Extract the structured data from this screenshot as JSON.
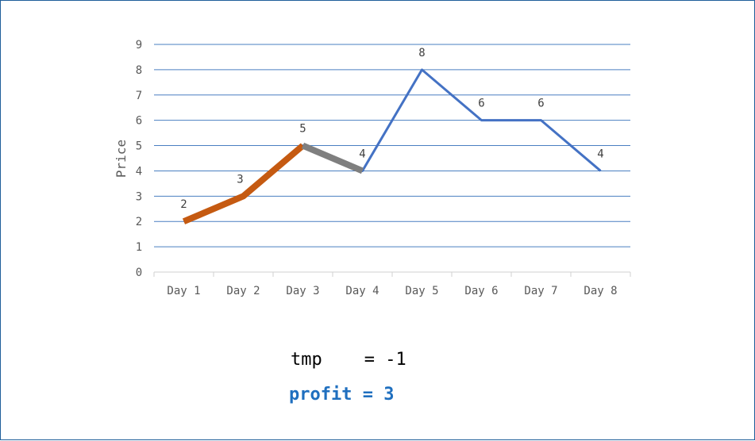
{
  "chart_data": {
    "type": "line",
    "categories": [
      "Day 1",
      "Day 2",
      "Day 3",
      "Day 4",
      "Day 5",
      "Day 6",
      "Day 7",
      "Day 8"
    ],
    "series": [
      {
        "values": [
          2,
          3,
          5,
          4,
          8,
          6,
          6,
          4
        ],
        "color": "#4472c4"
      }
    ],
    "data_labels": [
      "2",
      "3",
      "5",
      "4",
      "8",
      "6",
      "6",
      "4"
    ],
    "highlighted_segments": [
      {
        "from": "Day 1",
        "to": "Day 3",
        "color": "#c55a11"
      },
      {
        "from": "Day 3",
        "to": "Day 4",
        "color": "#7f7f7f"
      }
    ],
    "ylabel": "Price",
    "xlabel": "",
    "ylim": [
      0,
      9
    ],
    "yticks": [
      "0",
      "1",
      "2",
      "3",
      "4",
      "5",
      "6",
      "7",
      "8",
      "9"
    ],
    "grid": true,
    "gridline_color": "#4a7fc1"
  },
  "annotations": {
    "tmp_text": "tmp    = -1",
    "profit_text": "profit = 3"
  }
}
